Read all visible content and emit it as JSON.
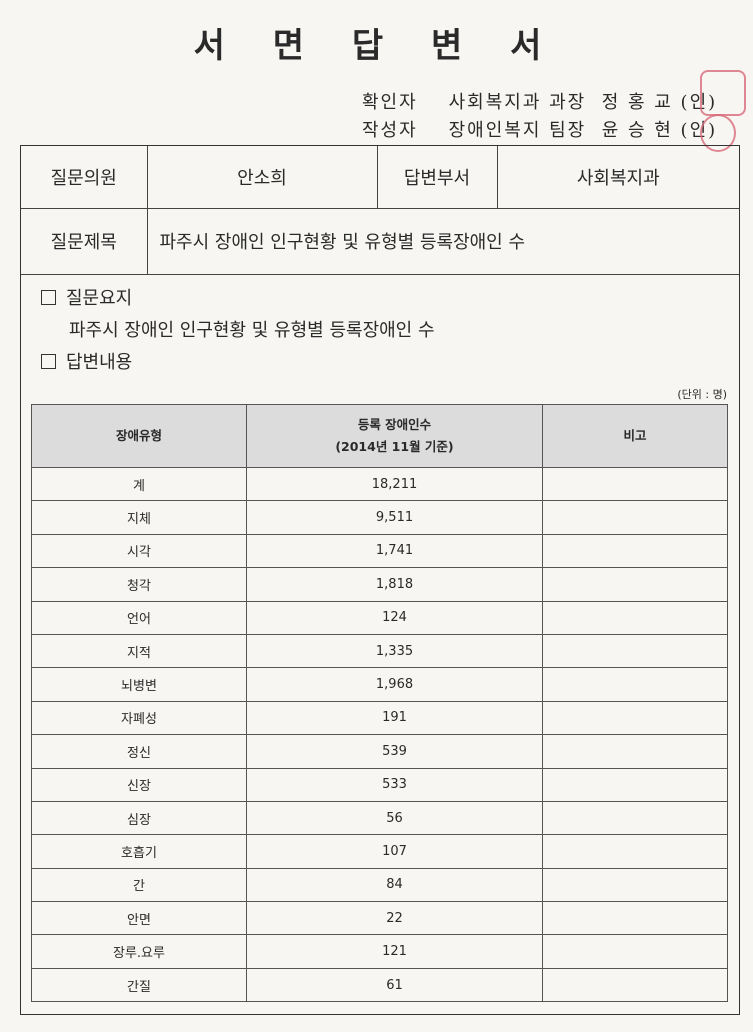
{
  "title": "서 면 답 변 서",
  "signatures": [
    {
      "role": "확인자",
      "dept": "사회복지과 과장",
      "name": "정 홍 교",
      "seal": "(인)"
    },
    {
      "role": "작성자",
      "dept": "장애인복지 팀장",
      "name": "윤 승 현",
      "seal": "(인)"
    }
  ],
  "stamp_color": "#d86a7a",
  "info": {
    "member_label": "질문의원",
    "member": "안소희",
    "dept_label": "답변부서",
    "dept": "사회복지과",
    "subject_label": "질문제목",
    "subject": "파주시 장애인 인구현황 및 유형별 등록장애인 수"
  },
  "summary_label": "질문요지",
  "summary": "파주시 장애인 인구현황 및 유형별 등록장애인 수",
  "answer_label": "답변내용",
  "unit": "(단위 : 명)",
  "table": {
    "headers": [
      "장애유형",
      "등록 장애인수",
      "(2014년 11월 기준)",
      "비고"
    ],
    "rows": [
      [
        "계",
        "18,211",
        ""
      ],
      [
        "지체",
        "9,511",
        ""
      ],
      [
        "시각",
        "1,741",
        ""
      ],
      [
        "청각",
        "1,818",
        ""
      ],
      [
        "언어",
        "124",
        ""
      ],
      [
        "지적",
        "1,335",
        ""
      ],
      [
        "뇌병변",
        "1,968",
        ""
      ],
      [
        "자폐성",
        "191",
        ""
      ],
      [
        "정신",
        "539",
        ""
      ],
      [
        "신장",
        "533",
        ""
      ],
      [
        "심장",
        "56",
        ""
      ],
      [
        "호흡기",
        "107",
        ""
      ],
      [
        "간",
        "84",
        ""
      ],
      [
        "안면",
        "22",
        ""
      ],
      [
        "장루.요루",
        "121",
        ""
      ],
      [
        "간질",
        "61",
        ""
      ]
    ]
  }
}
